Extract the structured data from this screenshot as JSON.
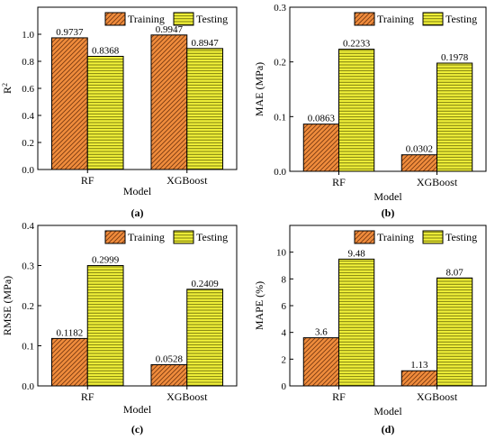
{
  "colors": {
    "training_fill": "#F08C3C",
    "training_hatch": "#7A3A10",
    "testing_fill": "#F2F23A",
    "testing_hatch": "#5A5A00",
    "axis": "#000000"
  },
  "chart_data": [
    {
      "type": "bar",
      "panel_label": "(a)",
      "ylabel": "R",
      "ylabel_sup": "2",
      "xlabel": "Model",
      "categories": [
        "RF",
        "XGBoost"
      ],
      "ylim": [
        0,
        1.2
      ],
      "yticks": [
        0.0,
        0.2,
        0.4,
        0.6,
        0.8,
        1.0
      ],
      "ytick_labels": [
        "0.0",
        "0.2",
        "0.4",
        "0.6",
        "0.8",
        "1.0"
      ],
      "legend_position": "top-right",
      "series": [
        {
          "name": "Training",
          "values": [
            0.9737,
            0.9947
          ],
          "labels": [
            "0.9737",
            "0.9947"
          ],
          "hatch": "diagonal"
        },
        {
          "name": "Testing",
          "values": [
            0.8368,
            0.8947
          ],
          "labels": [
            "0.8368",
            "0.8947"
          ],
          "hatch": "horizontal"
        }
      ]
    },
    {
      "type": "bar",
      "panel_label": "(b)",
      "ylabel": "MAE (MPa)",
      "ylabel_sup": "",
      "xlabel": "Model",
      "categories": [
        "RF",
        "XGBoost"
      ],
      "ylim": [
        0,
        0.3
      ],
      "yticks": [
        0.0,
        0.1,
        0.2,
        0.3
      ],
      "ytick_labels": [
        "0.0",
        "0.1",
        "0.2",
        "0.3"
      ],
      "legend_position": "top-right",
      "series": [
        {
          "name": "Training",
          "values": [
            0.0863,
            0.0302
          ],
          "labels": [
            "0.0863",
            "0.0302"
          ],
          "hatch": "diagonal"
        },
        {
          "name": "Testing",
          "values": [
            0.2233,
            0.1978
          ],
          "labels": [
            "0.2233",
            "0.1978"
          ],
          "hatch": "horizontal"
        }
      ]
    },
    {
      "type": "bar",
      "panel_label": "(c)",
      "ylabel": "RMSE (MPa)",
      "ylabel_sup": "",
      "xlabel": "Model",
      "categories": [
        "RF",
        "XGBoost"
      ],
      "ylim": [
        0,
        0.4
      ],
      "yticks": [
        0.0,
        0.1,
        0.2,
        0.3,
        0.4
      ],
      "ytick_labels": [
        "0.0",
        "0.1",
        "0.2",
        "0.3",
        "0.4"
      ],
      "legend_position": "top-right",
      "series": [
        {
          "name": "Training",
          "values": [
            0.1182,
            0.0528
          ],
          "labels": [
            "0.1182",
            "0.0528"
          ],
          "hatch": "diagonal"
        },
        {
          "name": "Testing",
          "values": [
            0.2999,
            0.2409
          ],
          "labels": [
            "0.2999",
            "0.2409"
          ],
          "hatch": "horizontal"
        }
      ]
    },
    {
      "type": "bar",
      "panel_label": "(d)",
      "ylabel": "MAPE (%)",
      "ylabel_sup": "",
      "xlabel": "Model",
      "categories": [
        "RF",
        "XGBoost"
      ],
      "ylim": [
        0,
        12
      ],
      "yticks": [
        0,
        2,
        4,
        6,
        8,
        10
      ],
      "ytick_labels": [
        "0",
        "2",
        "4",
        "6",
        "8",
        "10"
      ],
      "legend_position": "top-right",
      "series": [
        {
          "name": "Training",
          "values": [
            3.6,
            1.13
          ],
          "labels": [
            "3.6",
            "1.13"
          ],
          "hatch": "diagonal"
        },
        {
          "name": "Testing",
          "values": [
            9.48,
            8.07
          ],
          "labels": [
            "9.48",
            "8.07"
          ],
          "hatch": "horizontal"
        }
      ]
    }
  ]
}
